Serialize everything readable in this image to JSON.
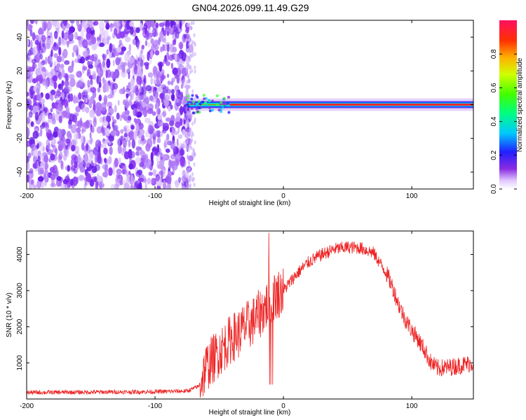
{
  "title": "GN04.2026.099.11.49.G29",
  "chart_data": [
    {
      "type": "heatmap",
      "name": "spectrogram",
      "xlabel": "Height of straight line (km)",
      "ylabel": "Frequency (Hz)",
      "xlim": [
        -200,
        148
      ],
      "ylim": [
        -50,
        50
      ],
      "xticks": [
        -200,
        -100,
        0,
        100
      ],
      "yticks": [
        -40,
        -20,
        0,
        20,
        40
      ],
      "noise_region_x": [
        -200,
        -72
      ],
      "signal_line": {
        "x_start": -75,
        "x_end": 148,
        "frequency": 0
      },
      "colorbar": {
        "label": "Normalized spectral amplitude",
        "range": [
          0.0,
          1.0
        ],
        "ticks": [
          0.0,
          0.2,
          0.4,
          0.6,
          0.8
        ]
      }
    },
    {
      "type": "line",
      "name": "snr",
      "xlabel": "Height of straight line (km)",
      "ylabel": "SNR (10 * v/v)",
      "xlim": [
        -200,
        148
      ],
      "ylim": [
        0,
        4650
      ],
      "xticks": [
        -200,
        -100,
        0,
        100
      ],
      "yticks": [
        1000,
        2000,
        3000,
        4000
      ],
      "series": [
        {
          "name": "SNR",
          "color": "#ee2222",
          "x": [
            -200,
            -150,
            -100,
            -75,
            -66,
            -60,
            -55,
            -50,
            -45,
            -40,
            -35,
            -30,
            -25,
            -20,
            -15,
            -10,
            -5,
            0,
            10,
            20,
            30,
            40,
            50,
            60,
            70,
            80,
            85,
            90,
            95,
            100,
            105,
            110,
            115,
            120,
            130,
            140,
            148
          ],
          "y": [
            180,
            190,
            200,
            220,
            350,
            900,
            1100,
            1300,
            1500,
            1700,
            1800,
            2000,
            2100,
            2300,
            2500,
            2750,
            2900,
            3000,
            3450,
            3800,
            4000,
            4150,
            4200,
            4180,
            4050,
            3500,
            3100,
            2600,
            2200,
            1900,
            1650,
            1350,
            1000,
            850,
            880,
            950,
            1000
          ]
        }
      ]
    }
  ]
}
